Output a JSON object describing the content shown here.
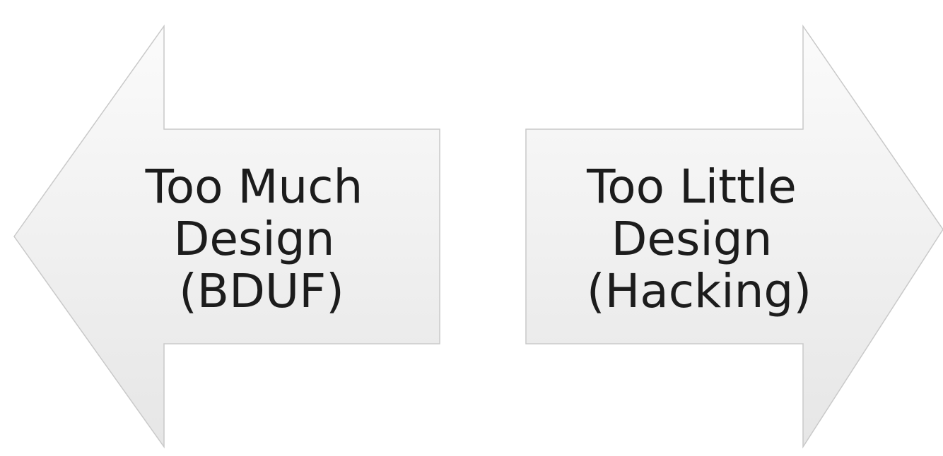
{
  "left_arrow": {
    "direction": "left",
    "lines": [
      "Too Much",
      "Design",
      "(BDUF)"
    ]
  },
  "right_arrow": {
    "direction": "right",
    "lines": [
      "Too Little",
      "Design",
      "(Hacking)"
    ]
  },
  "colors": {
    "background": "#ffffff",
    "arrow_fill_light": "#fbfbfb",
    "arrow_fill_dark": "#e7e7e7",
    "arrow_stroke": "#c9c9c9",
    "text": "#1c1c1c"
  }
}
